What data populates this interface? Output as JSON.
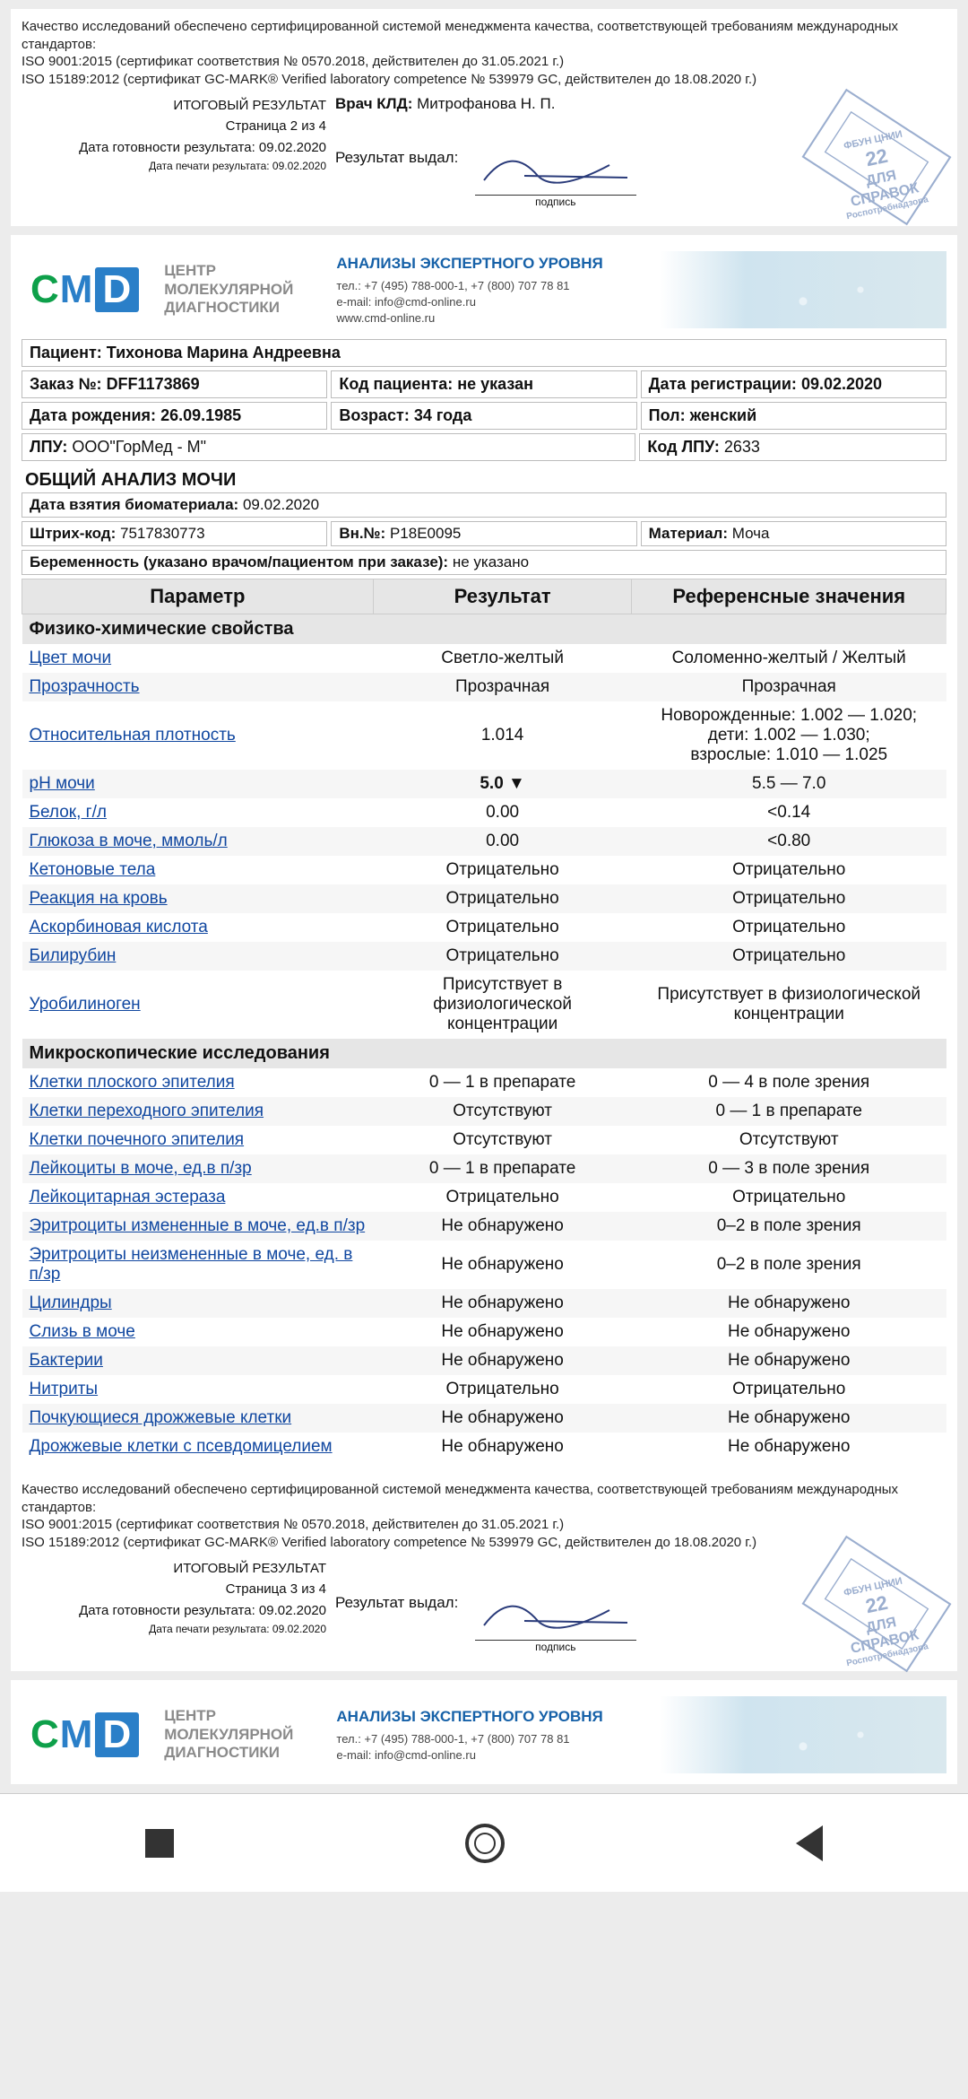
{
  "quality": {
    "line1": "Качество исследований обеспечено сертифицированной системой менеджмента качества, соответствующей требованиям международных стандартов:",
    "line2": "ISO 9001:2015 (сертификат соответствия № 0570.2018, действителен до 31.05.2021 г.)",
    "line3": "ISO 15189:2012 (сертификат GC-MARK® Verified laboratory competence № 539979 GC, действителен до 18.08.2020 г.)"
  },
  "footer1": {
    "title": "ИТОГОВЫЙ РЕЗУЛЬТАТ",
    "page": "Страница 2 из 4",
    "ready": "Дата готовности результата: 09.02.2020",
    "print": "Дата печати результата: 09.02.2020",
    "doctor_label": "Врач КЛД:",
    "doctor": "Митрофанова Н. П.",
    "issued": "Результат выдал:",
    "sign_caption": "подпись"
  },
  "footer2": {
    "title": "ИТОГОВЫЙ РЕЗУЛЬТАТ",
    "page": "Страница 3 из 4",
    "ready": "Дата готовности результата: 09.02.2020",
    "print": "Дата печати результата: 09.02.2020",
    "issued": "Результат выдал:",
    "sign_caption": "подпись"
  },
  "stamp": {
    "l1": "ФБУН ЦНИИ",
    "num": "22",
    "l2": "ДЛЯ",
    "l3": "СПРАВОК",
    "l4": "Роспотребнадзора"
  },
  "cmd": {
    "tag1": "ЦЕНТР",
    "tag2": "МОЛЕКУЛЯРНОЙ",
    "tag3": "ДИАГНОСТИКИ",
    "level": "АНАЛИЗЫ ЭКСПЕРТНОГО УРОВНЯ",
    "tel": "тел.: +7 (495) 788-000-1, +7 (800) 707 78 81",
    "email": "e-mail: info@cmd-online.ru",
    "web": "www.cmd-online.ru"
  },
  "info": {
    "patient_l": "Пациент:",
    "patient_v": "Тихонова Марина Андреевна",
    "order_l": "Заказ №:",
    "order_v": "DFF1173869",
    "code_l": "Код пациента:",
    "code_v": "не указан",
    "reg_l": "Дата регистрации:",
    "reg_v": "09.02.2020",
    "dob_l": "Дата рождения:",
    "dob_v": "26.09.1985",
    "age_l": "Возраст:",
    "age_v": "34 года",
    "sex_l": "Пол:",
    "sex_v": "женский",
    "lpu_l": "ЛПУ:",
    "lpu_v": "ООО\"ГорМед - М\"",
    "lpucode_l": "Код ЛПУ:",
    "lpucode_v": "2633"
  },
  "section": "ОБЩИЙ АНАЛИЗ МОЧИ",
  "sample": {
    "date_l": "Дата взятия биоматериала:",
    "date_v": "09.02.2020",
    "barcode_l": "Штрих-код:",
    "barcode_v": "7517830773",
    "vn_l": "Вн.№:",
    "vn_v": "P18E0095",
    "mat_l": "Материал:",
    "mat_v": "Моча"
  },
  "pregnancy_l": "Беременность (указано врачом/пациентом при заказе):",
  "pregnancy_v": "не указано",
  "headers": {
    "param": "Параметр",
    "result": "Результат",
    "ref": "Референсные значения"
  },
  "group1": "Физико-химические свойства",
  "group2": "Микроскопические исследования",
  "rows1": [
    {
      "p": "Цвет мочи",
      "r": "Светло-желтый",
      "ref": "Соломенно-желтый / Желтый"
    },
    {
      "p": "Прозрачность",
      "r": "Прозрачная",
      "ref": "Прозрачная"
    },
    {
      "p": "Относительная плотность",
      "r": "1.014",
      "ref": "Новорожденные: 1.002 — 1.020;\nдети: 1.002 — 1.030;\nвзрослые: 1.010 — 1.025"
    },
    {
      "p": "pH мочи",
      "r": "5.0 ▼",
      "ref": "5.5 — 7.0",
      "bold": true
    },
    {
      "p": "Белок, г/л",
      "r": "0.00",
      "ref": "<0.14"
    },
    {
      "p": "Глюкоза в моче, ммоль/л",
      "r": "0.00",
      "ref": "<0.80"
    },
    {
      "p": "Кетоновые тела",
      "r": "Отрицательно",
      "ref": "Отрицательно"
    },
    {
      "p": "Реакция на кровь",
      "r": "Отрицательно",
      "ref": "Отрицательно"
    },
    {
      "p": "Аскорбиновая кислота",
      "r": "Отрицательно",
      "ref": "Отрицательно"
    },
    {
      "p": "Билирубин",
      "r": "Отрицательно",
      "ref": "Отрицательно"
    },
    {
      "p": "Уробилиноген",
      "r": "Присутствует в физиологической концентрации",
      "ref": "Присутствует в физиологической концентрации"
    }
  ],
  "rows2": [
    {
      "p": "Клетки плоского эпителия",
      "r": "0 — 1 в препарате",
      "ref": "0 — 4 в поле зрения"
    },
    {
      "p": "Клетки переходного эпителия",
      "r": "Отсутствуют",
      "ref": "0 — 1 в препарате"
    },
    {
      "p": "Клетки почечного эпителия",
      "r": "Отсутствуют",
      "ref": "Отсутствуют"
    },
    {
      "p": "Лейкоциты в моче, ед.в п/зр",
      "r": "0 — 1 в препарате",
      "ref": "0 — 3 в поле зрения"
    },
    {
      "p": "Лейкоцитарная эстераза",
      "r": "Отрицательно",
      "ref": "Отрицательно"
    },
    {
      "p": "Эритроциты измененные в моче, ед.в п/зр",
      "r": "Не обнаружено",
      "ref": "0–2 в поле зрения"
    },
    {
      "p": "Эритроциты неизмененные в моче, ед. в п/зр",
      "r": "Не обнаружено",
      "ref": "0–2 в поле зрения"
    },
    {
      "p": "Цилиндры",
      "r": "Не обнаружено",
      "ref": "Не обнаружено"
    },
    {
      "p": "Слизь в моче",
      "r": "Не обнаружено",
      "ref": "Не обнаружено"
    },
    {
      "p": "Бактерии",
      "r": "Не обнаружено",
      "ref": "Не обнаружено"
    },
    {
      "p": "Нитриты",
      "r": "Отрицательно",
      "ref": "Отрицательно"
    },
    {
      "p": "Почкующиеся дрожжевые клетки",
      "r": "Не обнаружено",
      "ref": "Не обнаружено"
    },
    {
      "p": "Дрожжевые клетки с псевдомицелием",
      "r": "Не обнаружено",
      "ref": "Не обнаружено"
    }
  ]
}
